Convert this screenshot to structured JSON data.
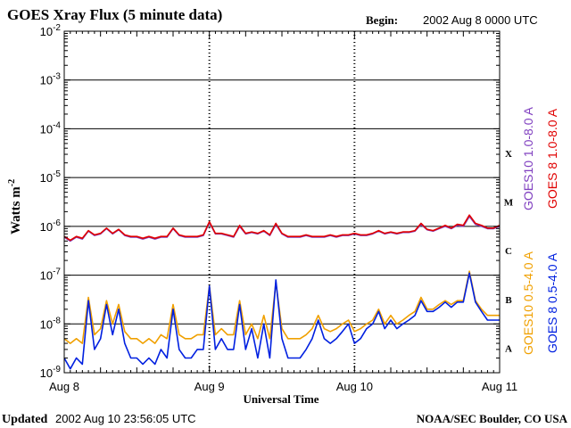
{
  "chart_data": {
    "type": "line",
    "title": "GOES Xray Flux (5 minute data)",
    "begin_label": "Begin:",
    "begin_value": "2002 Aug 8 0000 UTC",
    "xlabel": "Universal Time",
    "ylabel": "Watts m",
    "ylabel_sup": "-2",
    "y_scale": "log",
    "ylim": [
      1e-09,
      0.01
    ],
    "xlim": [
      0,
      72
    ],
    "x_unit": "hours since 2002 Aug 8 0000 UTC",
    "x_ticks": [
      {
        "value": 0,
        "label": "Aug 8"
      },
      {
        "value": 24,
        "label": "Aug 9"
      },
      {
        "value": 48,
        "label": "Aug 10"
      },
      {
        "value": 72,
        "label": "Aug 11"
      }
    ],
    "y_ticks": [
      {
        "exp": -2,
        "base": "10",
        "sup": "-2"
      },
      {
        "exp": -3,
        "base": "10",
        "sup": "-3"
      },
      {
        "exp": -4,
        "base": "10",
        "sup": "-4"
      },
      {
        "exp": -5,
        "base": "10",
        "sup": "-5"
      },
      {
        "exp": -6,
        "base": "10",
        "sup": "-6"
      },
      {
        "exp": -7,
        "base": "10",
        "sup": "-7"
      },
      {
        "exp": -8,
        "base": "10",
        "sup": "-8"
      },
      {
        "exp": -9,
        "base": "10",
        "sup": "-9"
      }
    ],
    "flare_classes": [
      {
        "label": "X",
        "exp": -4.5
      },
      {
        "label": "M",
        "exp": -5.5
      },
      {
        "label": "C",
        "exp": -6.5
      },
      {
        "label": "B",
        "exp": -7.5
      },
      {
        "label": "A",
        "exp": -8.5
      }
    ],
    "series": [
      {
        "name": "GOES10 1.0-8.0 A",
        "color": "#8040c0",
        "x": [
          0,
          1,
          2,
          3,
          4,
          5,
          6,
          7,
          8,
          9,
          10,
          11,
          12,
          13,
          14,
          15,
          16,
          17,
          18,
          19,
          20,
          21,
          22,
          23,
          24,
          25,
          26,
          27,
          28,
          29,
          30,
          31,
          32,
          33,
          34,
          35,
          36,
          37,
          38,
          39,
          40,
          41,
          42,
          43,
          44,
          45,
          46,
          47,
          48,
          49,
          50,
          51,
          52,
          53,
          54,
          55,
          56,
          57,
          58,
          59,
          60,
          61,
          62,
          63,
          64,
          65,
          66,
          67,
          68,
          69,
          70,
          71,
          72
        ],
        "y": [
          6e-07,
          5e-07,
          6e-07,
          5.5e-07,
          8e-07,
          6.5e-07,
          7e-07,
          9e-07,
          7e-07,
          8.5e-07,
          6.5e-07,
          6e-07,
          6e-07,
          5.5e-07,
          6e-07,
          5.5e-07,
          6e-07,
          6e-07,
          9e-07,
          6.5e-07,
          6e-07,
          6e-07,
          6e-07,
          6.5e-07,
          1.2e-06,
          7e-07,
          7e-07,
          6.5e-07,
          6e-07,
          1e-06,
          7e-07,
          7.5e-07,
          7e-07,
          8e-07,
          6.5e-07,
          1.1e-06,
          7e-07,
          6e-07,
          6e-07,
          6e-07,
          6.5e-07,
          6e-07,
          6e-07,
          6e-07,
          6.5e-07,
          6e-07,
          6.5e-07,
          6.5e-07,
          7e-07,
          6.5e-07,
          6.5e-07,
          7e-07,
          8e-07,
          7e-07,
          7.5e-07,
          7e-07,
          7.5e-07,
          7.5e-07,
          8e-07,
          1.1e-06,
          8.5e-07,
          8e-07,
          9e-07,
          1e-06,
          9e-07,
          1.05e-06,
          1e-06,
          1.6e-06,
          1.1e-06,
          1e-06,
          9e-07,
          9e-07,
          1e-06
        ]
      },
      {
        "name": "GOES 8 1.0-8.0 A",
        "color": "#e00000",
        "x": [
          0,
          1,
          2,
          3,
          4,
          5,
          6,
          7,
          8,
          9,
          10,
          11,
          12,
          13,
          14,
          15,
          16,
          17,
          18,
          19,
          20,
          21,
          22,
          23,
          24,
          25,
          26,
          27,
          28,
          29,
          30,
          31,
          32,
          33,
          34,
          35,
          36,
          37,
          38,
          39,
          40,
          41,
          42,
          43,
          44,
          45,
          46,
          47,
          48,
          49,
          50,
          51,
          52,
          53,
          54,
          55,
          56,
          57,
          58,
          59,
          60,
          61,
          62,
          63,
          64,
          65,
          66,
          67,
          68,
          69,
          70,
          71,
          72
        ],
        "y": [
          6.2e-07,
          5.2e-07,
          6.2e-07,
          5.7e-07,
          8.2e-07,
          6.7e-07,
          7.2e-07,
          9.2e-07,
          7.2e-07,
          8.7e-07,
          6.7e-07,
          6.2e-07,
          6.2e-07,
          5.7e-07,
          6.2e-07,
          5.7e-07,
          6.2e-07,
          6.2e-07,
          9.2e-07,
          6.7e-07,
          6.2e-07,
          6.2e-07,
          6.2e-07,
          6.7e-07,
          1.25e-06,
          7.2e-07,
          7.2e-07,
          6.7e-07,
          6.2e-07,
          1.05e-06,
          7.2e-07,
          7.7e-07,
          7.2e-07,
          8.2e-07,
          6.7e-07,
          1.15e-06,
          7.2e-07,
          6.2e-07,
          6.2e-07,
          6.2e-07,
          6.7e-07,
          6.2e-07,
          6.2e-07,
          6.2e-07,
          6.7e-07,
          6.2e-07,
          6.7e-07,
          6.7e-07,
          7.2e-07,
          6.7e-07,
          6.7e-07,
          7.2e-07,
          8.2e-07,
          7.2e-07,
          7.7e-07,
          7.2e-07,
          7.7e-07,
          7.7e-07,
          8.2e-07,
          1.15e-06,
          8.7e-07,
          8.2e-07,
          9.2e-07,
          1.05e-06,
          9.2e-07,
          1.1e-06,
          1.05e-06,
          1.7e-06,
          1.15e-06,
          1.05e-06,
          9.2e-07,
          9.2e-07,
          1.05e-06
        ]
      },
      {
        "name": "GOES10 0.5-4.0 A",
        "color": "#f0a000",
        "x": [
          0,
          1,
          2,
          3,
          4,
          5,
          6,
          7,
          8,
          9,
          10,
          11,
          12,
          13,
          14,
          15,
          16,
          17,
          18,
          19,
          20,
          21,
          22,
          23,
          24,
          25,
          26,
          27,
          28,
          29,
          30,
          31,
          32,
          33,
          34,
          35,
          36,
          37,
          38,
          39,
          40,
          41,
          42,
          43,
          44,
          45,
          46,
          47,
          48,
          49,
          50,
          51,
          52,
          53,
          54,
          55,
          56,
          57,
          58,
          59,
          60,
          61,
          62,
          63,
          64,
          65,
          66,
          67,
          68,
          69,
          70,
          71,
          72
        ],
        "y": [
          5e-09,
          4e-09,
          5e-09,
          4e-09,
          3.5e-08,
          6e-09,
          8e-09,
          3e-08,
          1e-08,
          2.5e-08,
          7e-09,
          5e-09,
          5e-09,
          4e-09,
          5e-09,
          4e-09,
          6e-09,
          5e-09,
          2.5e-08,
          6e-09,
          5e-09,
          5e-09,
          6e-09,
          6e-09,
          6e-08,
          6e-09,
          8e-09,
          6e-09,
          6e-09,
          3e-08,
          6e-09,
          1e-08,
          5e-09,
          1.5e-08,
          5e-09,
          7e-08,
          8e-09,
          5e-09,
          5e-09,
          5e-09,
          6e-09,
          8e-09,
          1.5e-08,
          8e-09,
          7e-09,
          8e-09,
          1e-08,
          1.2e-08,
          7e-09,
          8e-09,
          1e-08,
          1.2e-08,
          2e-08,
          1e-08,
          1.5e-08,
          1e-08,
          1.2e-08,
          1.5e-08,
          1.8e-08,
          3.5e-08,
          2e-08,
          2e-08,
          2.5e-08,
          3e-08,
          2.5e-08,
          3e-08,
          3e-08,
          1.2e-07,
          3e-08,
          2e-08,
          1.5e-08,
          1.5e-08,
          1.5e-08
        ]
      },
      {
        "name": "GOES 8 0.5-4.0 A",
        "color": "#0020e0",
        "x": [
          0,
          1,
          2,
          3,
          4,
          5,
          6,
          7,
          8,
          9,
          10,
          11,
          12,
          13,
          14,
          15,
          16,
          17,
          18,
          19,
          20,
          21,
          22,
          23,
          24,
          25,
          26,
          27,
          28,
          29,
          30,
          31,
          32,
          33,
          34,
          35,
          36,
          37,
          38,
          39,
          40,
          41,
          42,
          43,
          44,
          45,
          46,
          47,
          48,
          49,
          50,
          51,
          52,
          53,
          54,
          55,
          56,
          57,
          58,
          59,
          60,
          61,
          62,
          63,
          64,
          65,
          66,
          67,
          68,
          69,
          70,
          71,
          72
        ],
        "y": [
          2e-09,
          1.2e-09,
          2e-09,
          1.5e-09,
          3e-08,
          3e-09,
          5e-09,
          2.5e-08,
          6e-09,
          2e-08,
          4e-09,
          2e-09,
          2e-09,
          1.5e-09,
          2e-09,
          1.5e-09,
          3e-09,
          2e-09,
          2e-08,
          3e-09,
          2e-09,
          2e-09,
          3e-09,
          3e-09,
          6e-08,
          3e-09,
          5e-09,
          3e-09,
          3e-09,
          2.5e-08,
          3e-09,
          8e-09,
          2e-09,
          1e-08,
          2e-09,
          8e-08,
          5e-09,
          2e-09,
          2e-09,
          2e-09,
          3e-09,
          5e-09,
          1.2e-08,
          5e-09,
          4e-09,
          5e-09,
          7e-09,
          1e-08,
          4e-09,
          5e-09,
          8e-09,
          1e-08,
          1.8e-08,
          8e-09,
          1.2e-08,
          8e-09,
          1e-08,
          1.2e-08,
          1.5e-08,
          3e-08,
          1.8e-08,
          1.8e-08,
          2.2e-08,
          2.8e-08,
          2.2e-08,
          2.8e-08,
          2.8e-08,
          1.1e-07,
          2.8e-08,
          1.8e-08,
          1.2e-08,
          1.2e-08,
          1.2e-08
        ]
      }
    ],
    "legend_right": [
      {
        "label": "GOES10 1.0-8.0 A",
        "color": "#8040c0"
      },
      {
        "label": "GOES 8 1.0-8.0 A",
        "color": "#e00000"
      }
    ],
    "legend_right_lower": [
      {
        "label": "GOES10 0.5-4.0 A",
        "color": "#f0a000"
      },
      {
        "label": "GOES 8 0.5-4.0 A",
        "color": "#0020e0"
      }
    ],
    "footer_left_label": "Updated",
    "footer_left_value": "2002 Aug 10 23:56:05 UTC",
    "footer_right": "NOAA/SEC Boulder, CO USA",
    "grid": true
  }
}
